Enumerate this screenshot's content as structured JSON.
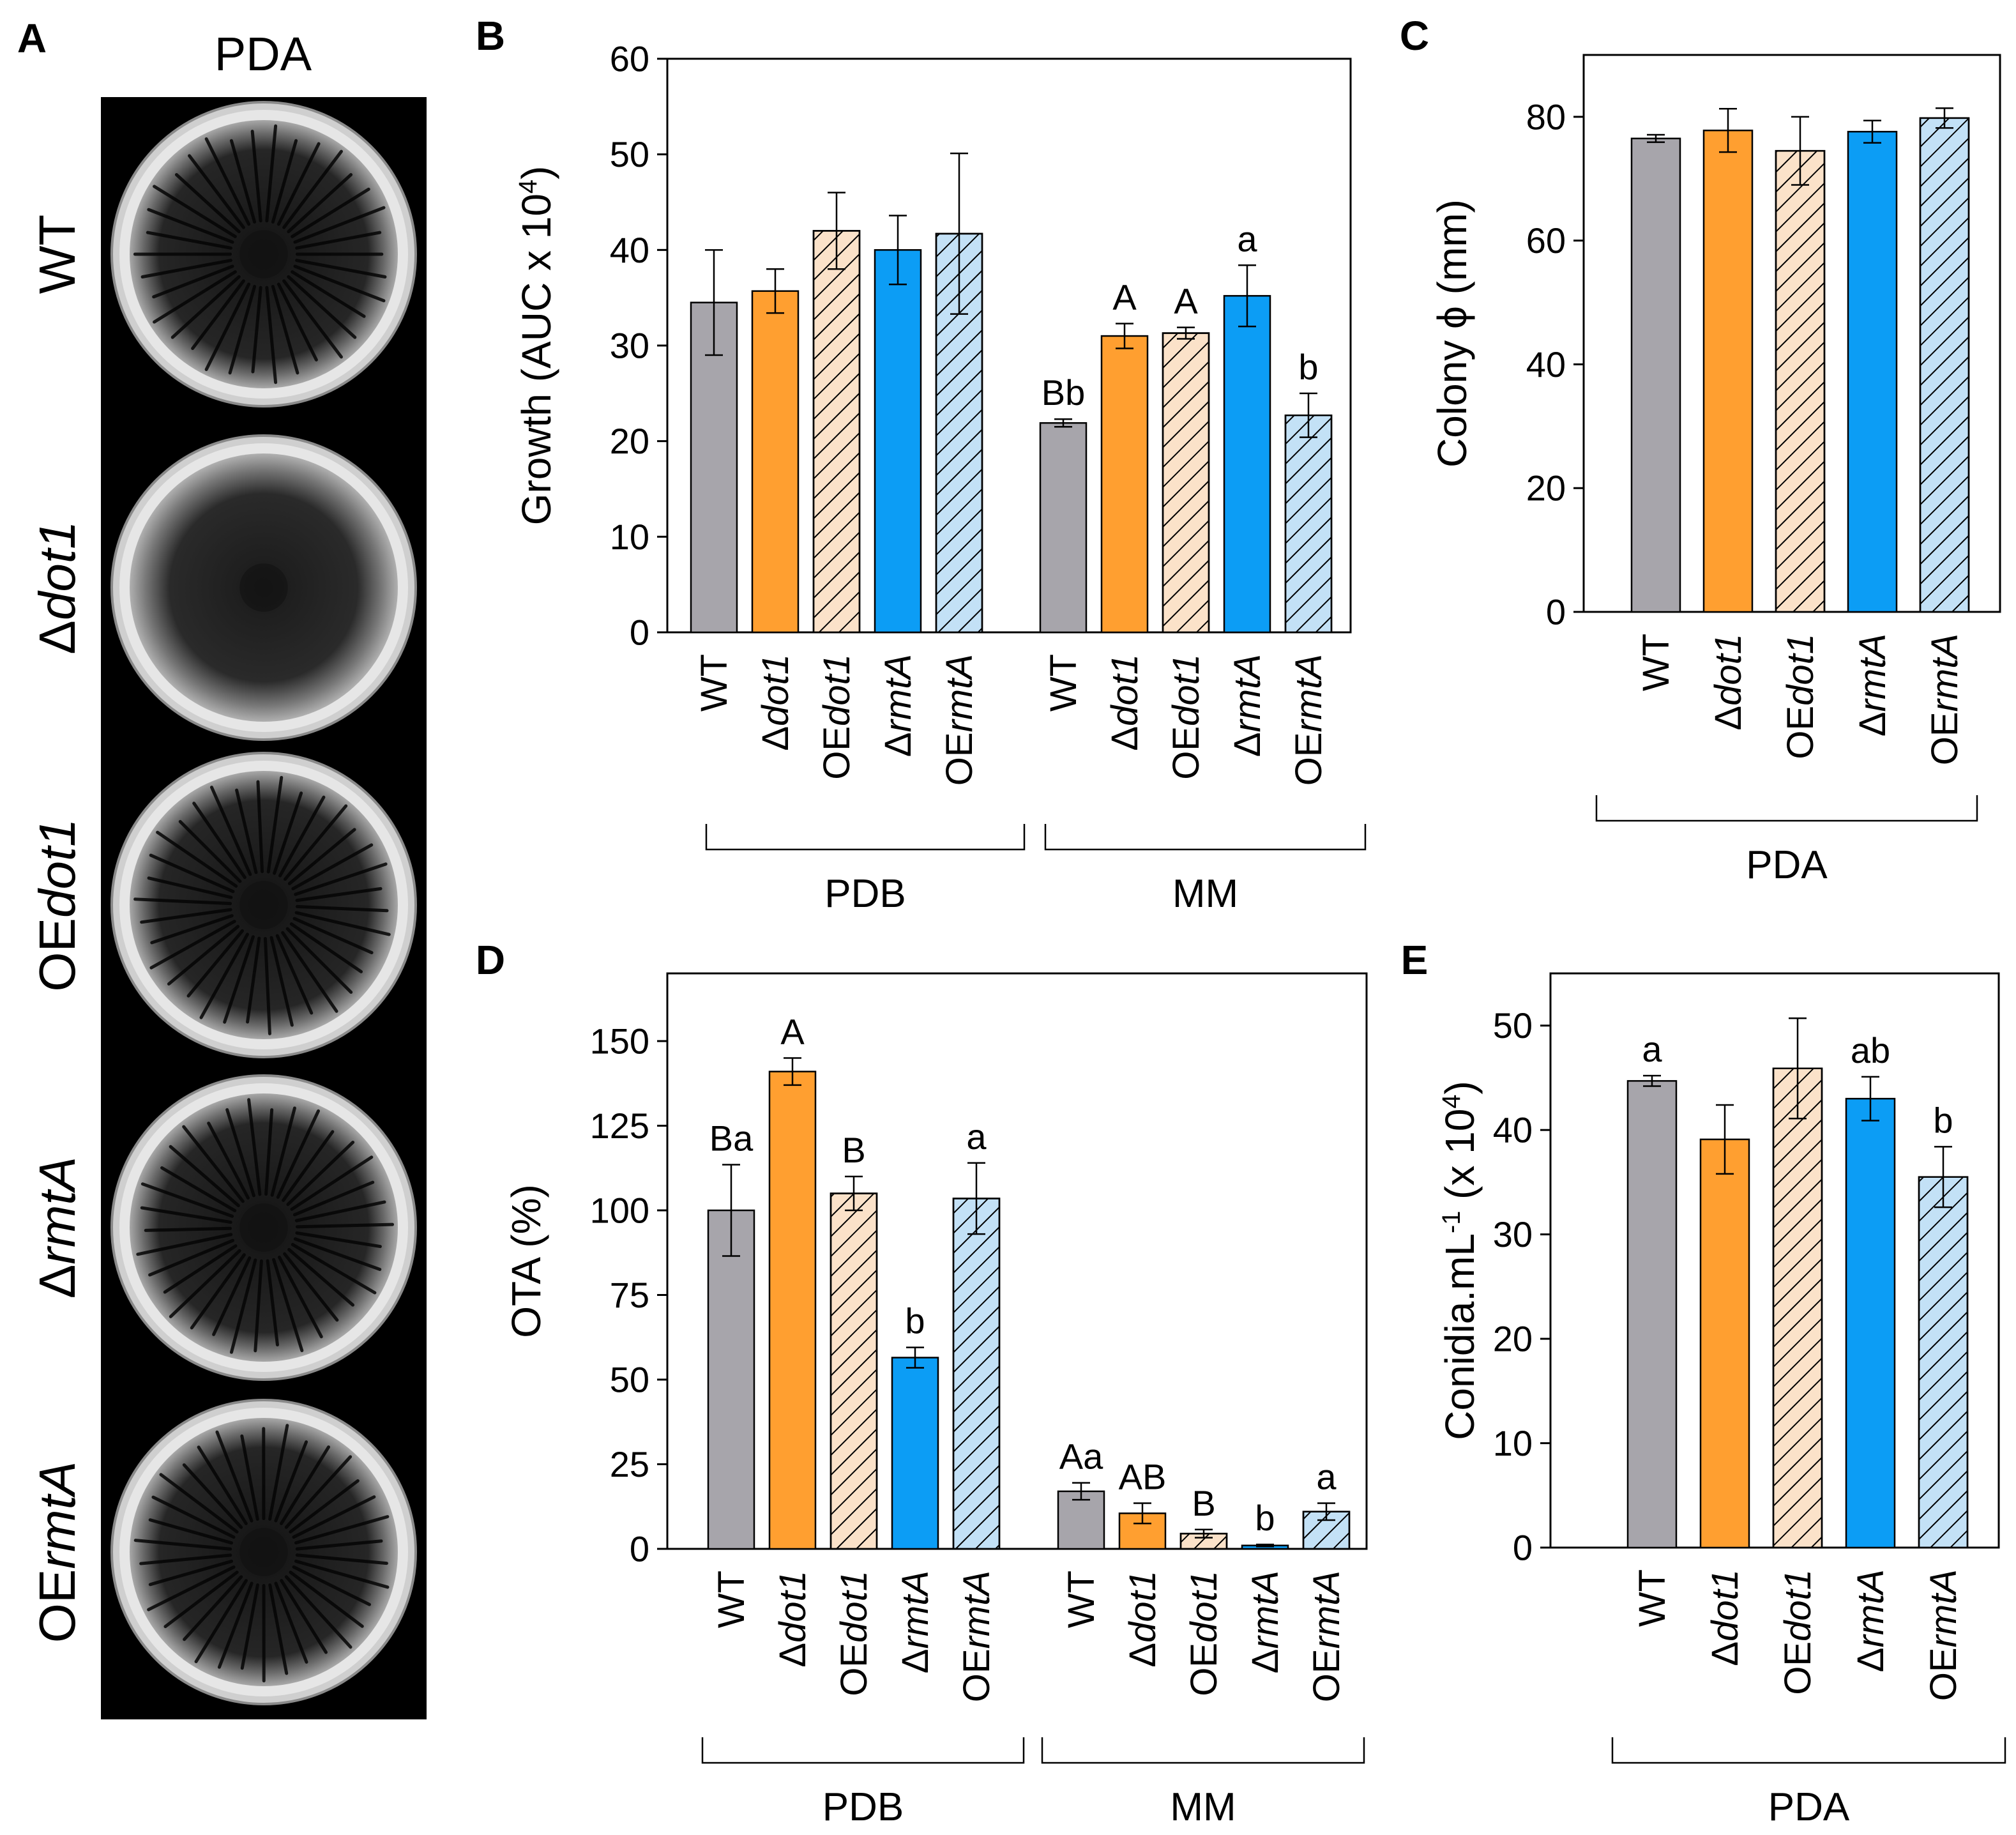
{
  "figure": {
    "panel_letters": [
      "A",
      "B",
      "C",
      "D",
      "E"
    ],
    "strains": [
      "WT",
      "Δdot1",
      "OEdot1",
      "ΔrmtA",
      "OErmtA"
    ],
    "strain_labels": [
      [
        {
          "t": "WT",
          "i": false
        }
      ],
      [
        {
          "t": "Δ",
          "i": false
        },
        {
          "t": "dot1",
          "i": true
        }
      ],
      [
        {
          "t": "OE",
          "i": false
        },
        {
          "t": "dot1",
          "i": true
        }
      ],
      [
        {
          "t": "Δ",
          "i": false
        },
        {
          "t": "rmtA",
          "i": true
        }
      ],
      [
        {
          "t": "OE",
          "i": false
        },
        {
          "t": "rmtA",
          "i": true
        }
      ]
    ],
    "styles": {
      "WT": {
        "fill": "#a7a5ab",
        "hatch": false
      },
      "Δdot1": {
        "fill": "#ff9f30",
        "hatch": false
      },
      "OEdot1": {
        "fill": "#fbe2c9",
        "hatch": true
      },
      "ΔrmtA": {
        "fill": "#0c9df5",
        "hatch": false
      },
      "OErmtA": {
        "fill": "#c3e1f6",
        "hatch": true
      }
    }
  },
  "panel_a": {
    "letter": "A",
    "medium": "PDA",
    "rows": [
      [
        {
          "t": "WT",
          "i": false
        }
      ],
      [
        {
          "t": "Δ",
          "i": false
        },
        {
          "t": "dot1",
          "i": true
        }
      ],
      [
        {
          "t": "OE",
          "i": false
        },
        {
          "t": "dot1",
          "i": true
        }
      ],
      [
        {
          "t": "Δ",
          "i": false
        },
        {
          "t": "rmtA",
          "i": true
        }
      ],
      [
        {
          "t": "OE",
          "i": false
        },
        {
          "t": "rmtA",
          "i": true
        }
      ]
    ],
    "plates": [
      {
        "strain": "WT",
        "pattern": "radial"
      },
      {
        "strain": "Δdot1",
        "pattern": "dense"
      },
      {
        "strain": "OEdot1",
        "pattern": "radial"
      },
      {
        "strain": "ΔrmtA",
        "pattern": "radial"
      },
      {
        "strain": "OErmtA",
        "pattern": "radial"
      }
    ]
  },
  "chart_data": [
    {
      "panel": "B",
      "type": "bar",
      "ylabel_parts": [
        {
          "t": "Growth (AUC x 10",
          "s": false
        },
        {
          "t": "4",
          "s": true
        },
        {
          "t": ")",
          "s": false
        }
      ],
      "ylim": [
        0,
        60
      ],
      "yticks": [
        0,
        10,
        20,
        30,
        40,
        50,
        60
      ],
      "groups": [
        {
          "name": "PDB",
          "series": [
            {
              "strain": "WT",
              "value": 34.5,
              "err": 5.5,
              "label": ""
            },
            {
              "strain": "Δdot1",
              "value": 35.7,
              "err": 2.3,
              "label": ""
            },
            {
              "strain": "OEdot1",
              "value": 42.0,
              "err": 4.0,
              "label": ""
            },
            {
              "strain": "ΔrmtA",
              "value": 40.0,
              "err": 3.6,
              "label": ""
            },
            {
              "strain": "OErmtA",
              "value": 41.7,
              "err": 8.4,
              "label": ""
            }
          ]
        },
        {
          "name": "MM",
          "series": [
            {
              "strain": "WT",
              "value": 21.9,
              "err": 0.4,
              "label": "Bb"
            },
            {
              "strain": "Δdot1",
              "value": 31.0,
              "err": 1.3,
              "label": "A"
            },
            {
              "strain": "OEdot1",
              "value": 31.3,
              "err": 0.6,
              "label": "A"
            },
            {
              "strain": "ΔrmtA",
              "value": 35.2,
              "err": 3.2,
              "label": "a"
            },
            {
              "strain": "OErmtA",
              "value": 22.7,
              "err": 2.3,
              "label": "b"
            }
          ]
        }
      ]
    },
    {
      "panel": "C",
      "type": "bar",
      "ylabel_parts": [
        {
          "t": "Colony ϕ (mm)",
          "s": false
        }
      ],
      "ylim": [
        0,
        90
      ],
      "yticks": [
        0,
        20,
        40,
        60,
        80
      ],
      "groups": [
        {
          "name": "PDA",
          "series": [
            {
              "strain": "WT",
              "value": 76.5,
              "err": 0.6,
              "label": ""
            },
            {
              "strain": "Δdot1",
              "value": 77.8,
              "err": 3.5,
              "label": ""
            },
            {
              "strain": "OEdot1",
              "value": 74.5,
              "err": 5.5,
              "label": ""
            },
            {
              "strain": "ΔrmtA",
              "value": 77.6,
              "err": 1.8,
              "label": ""
            },
            {
              "strain": "OErmtA",
              "value": 79.8,
              "err": 1.6,
              "label": ""
            }
          ]
        }
      ]
    },
    {
      "panel": "D",
      "type": "bar",
      "ylabel_parts": [
        {
          "t": "OTA (%)",
          "s": false
        }
      ],
      "ylim": [
        0,
        170
      ],
      "yticks": [
        0,
        25,
        50,
        75,
        100,
        125,
        150
      ],
      "groups": [
        {
          "name": "PDB",
          "series": [
            {
              "strain": "WT",
              "value": 100,
              "err": 13.5,
              "label": "Ba"
            },
            {
              "strain": "Δdot1",
              "value": 141,
              "err": 4,
              "label": "A"
            },
            {
              "strain": "OEdot1",
              "value": 105,
              "err": 5,
              "label": "B"
            },
            {
              "strain": "ΔrmtA",
              "value": 56.5,
              "err": 3,
              "label": "b"
            },
            {
              "strain": "OErmtA",
              "value": 103.5,
              "err": 10.5,
              "label": "a"
            }
          ]
        },
        {
          "name": "MM",
          "series": [
            {
              "strain": "WT",
              "value": 17,
              "err": 2.5,
              "label": "Aa"
            },
            {
              "strain": "Δdot1",
              "value": 10.5,
              "err": 3,
              "label": "AB"
            },
            {
              "strain": "OEdot1",
              "value": 4.5,
              "err": 1.2,
              "label": "B"
            },
            {
              "strain": "ΔrmtA",
              "value": 1,
              "err": 0.3,
              "label": "b"
            },
            {
              "strain": "OErmtA",
              "value": 11,
              "err": 2.5,
              "label": "a"
            }
          ]
        }
      ]
    },
    {
      "panel": "E",
      "type": "bar",
      "ylabel_parts": [
        {
          "t": "Conidia.mL",
          "s": false
        },
        {
          "t": "-1",
          "s": true
        },
        {
          "t": " (x 10",
          "s": false
        },
        {
          "t": "4",
          "s": true
        },
        {
          "t": ")",
          "s": false
        }
      ],
      "ylim": [
        0,
        55
      ],
      "yticks": [
        0,
        10,
        20,
        30,
        40,
        50
      ],
      "groups": [
        {
          "name": "PDA",
          "series": [
            {
              "strain": "WT",
              "value": 44.7,
              "err": 0.5,
              "label": "a"
            },
            {
              "strain": "Δdot1",
              "value": 39.1,
              "err": 3.3,
              "label": ""
            },
            {
              "strain": "OEdot1",
              "value": 45.9,
              "err": 4.8,
              "label": ""
            },
            {
              "strain": "ΔrmtA",
              "value": 43.0,
              "err": 2.1,
              "label": "ab"
            },
            {
              "strain": "OErmtA",
              "value": 35.5,
              "err": 2.9,
              "label": "b"
            }
          ]
        }
      ]
    }
  ]
}
